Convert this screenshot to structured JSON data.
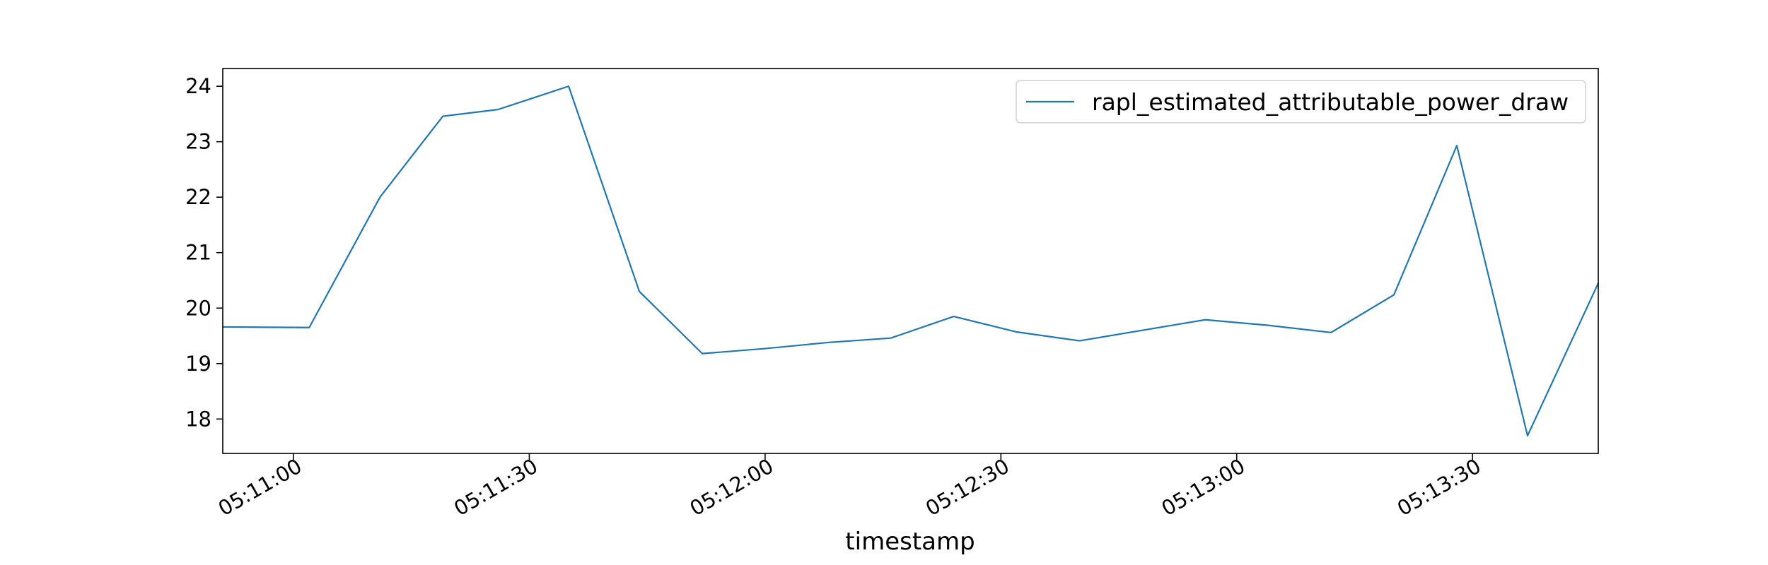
{
  "chart_data": {
    "type": "line",
    "title": "",
    "xlabel": "timestamp",
    "ylabel": "",
    "x_ticks": [
      "05:11:00",
      "05:11:30",
      "05:12:00",
      "05:12:30",
      "05:13:00",
      "05:13:30"
    ],
    "y_ticks": [
      18,
      19,
      20,
      21,
      22,
      23,
      24
    ],
    "xlim": [
      "05:10:51",
      "05:13:46"
    ],
    "ylim": [
      17.38,
      24.32
    ],
    "grid": false,
    "legend_position": "top-right",
    "series": [
      {
        "name": "rapl_estimated_attributable_power_draw",
        "color": "#1f77b4",
        "points": [
          {
            "x": "05:10:51",
            "y": 19.66
          },
          {
            "x": "05:11:02",
            "y": 19.65
          },
          {
            "x": "05:11:11",
            "y": 22.0
          },
          {
            "x": "05:11:19",
            "y": 23.46
          },
          {
            "x": "05:11:26",
            "y": 23.58
          },
          {
            "x": "05:11:35",
            "y": 24.0
          },
          {
            "x": "05:11:44",
            "y": 20.3
          },
          {
            "x": "05:11:52",
            "y": 19.18
          },
          {
            "x": "05:12:00",
            "y": 19.27
          },
          {
            "x": "05:12:08",
            "y": 19.38
          },
          {
            "x": "05:12:16",
            "y": 19.46
          },
          {
            "x": "05:12:24",
            "y": 19.85
          },
          {
            "x": "05:12:32",
            "y": 19.57
          },
          {
            "x": "05:12:40",
            "y": 19.41
          },
          {
            "x": "05:12:48",
            "y": 19.6
          },
          {
            "x": "05:12:56",
            "y": 19.79
          },
          {
            "x": "05:13:04",
            "y": 19.69
          },
          {
            "x": "05:13:12",
            "y": 19.56
          },
          {
            "x": "05:13:20",
            "y": 20.24
          },
          {
            "x": "05:13:28",
            "y": 22.93
          },
          {
            "x": "05:13:37",
            "y": 17.7
          },
          {
            "x": "05:13:46",
            "y": 20.45
          }
        ]
      }
    ]
  }
}
